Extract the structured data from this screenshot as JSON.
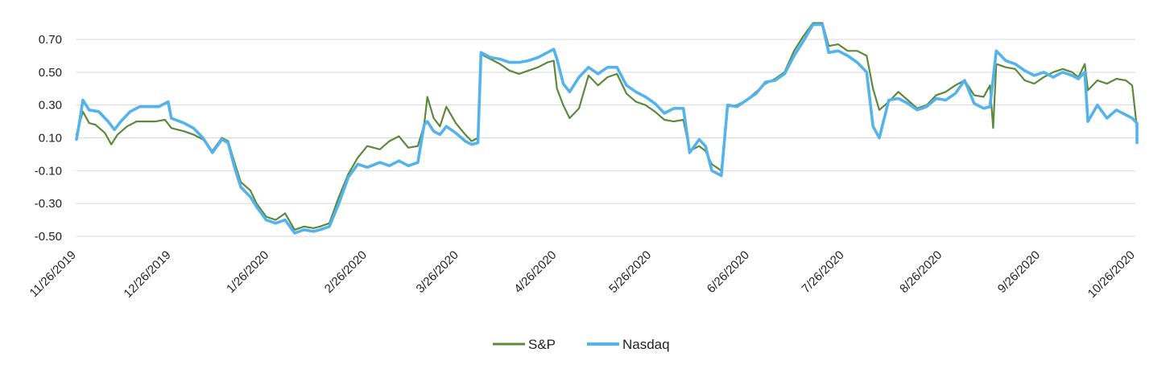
{
  "chart_data": {
    "type": "line",
    "title": "",
    "xlabel": "",
    "ylabel": "",
    "x_start": "2019-11-26",
    "x_end": "2020-10-26",
    "x_tick_labels": [
      "11/26/2019",
      "12/26/2019",
      "1/26/2020",
      "2/26/2020",
      "3/26/2020",
      "4/26/2020",
      "5/26/2020",
      "6/26/2020",
      "7/26/2020",
      "8/26/2020",
      "9/26/2020",
      "10/26/2020"
    ],
    "x_tick_dates": [
      "2019-11-26",
      "2019-12-26",
      "2020-01-26",
      "2020-02-26",
      "2020-03-26",
      "2020-04-26",
      "2020-05-26",
      "2020-06-26",
      "2020-07-26",
      "2020-08-26",
      "2020-09-26",
      "2020-10-26"
    ],
    "y_tick_labels": [
      "0.70",
      "0.50",
      "0.30",
      "0.10",
      "-0.10",
      "-0.30",
      "-0.50"
    ],
    "y_tick_values": [
      0.7,
      0.5,
      0.3,
      0.1,
      -0.1,
      -0.3,
      -0.5
    ],
    "ylim": [
      -0.5,
      0.8
    ],
    "grid": true,
    "legend_position": "bottom",
    "series": [
      {
        "name": "S&P",
        "color": "#5b8a3c",
        "points": [
          [
            "2019-11-26",
            0.12
          ],
          [
            "2019-11-28",
            0.26
          ],
          [
            "2019-11-30",
            0.19
          ],
          [
            "2019-12-02",
            0.18
          ],
          [
            "2019-12-05",
            0.13
          ],
          [
            "2019-12-07",
            0.06
          ],
          [
            "2019-12-09",
            0.12
          ],
          [
            "2019-12-12",
            0.17
          ],
          [
            "2019-12-15",
            0.2
          ],
          [
            "2019-12-18",
            0.2
          ],
          [
            "2019-12-21",
            0.2
          ],
          [
            "2019-12-24",
            0.21
          ],
          [
            "2019-12-26",
            0.16
          ],
          [
            "2019-12-30",
            0.14
          ],
          [
            "2020-01-02",
            0.12
          ],
          [
            "2020-01-05",
            0.09
          ],
          [
            "2020-01-08",
            0.02
          ],
          [
            "2020-01-11",
            0.1
          ],
          [
            "2020-01-13",
            0.08
          ],
          [
            "2020-01-15",
            -0.05
          ],
          [
            "2020-01-17",
            -0.17
          ],
          [
            "2020-01-20",
            -0.22
          ],
          [
            "2020-01-22",
            -0.3
          ],
          [
            "2020-01-25",
            -0.38
          ],
          [
            "2020-01-28",
            -0.4
          ],
          [
            "2020-01-31",
            -0.36
          ],
          [
            "2020-02-03",
            -0.46
          ],
          [
            "2020-02-06",
            -0.44
          ],
          [
            "2020-02-09",
            -0.45
          ],
          [
            "2020-02-11",
            -0.44
          ],
          [
            "2020-02-14",
            -0.42
          ],
          [
            "2020-02-17",
            -0.26
          ],
          [
            "2020-02-20",
            -0.12
          ],
          [
            "2020-02-23",
            -0.02
          ],
          [
            "2020-02-26",
            0.05
          ],
          [
            "2020-03-01",
            0.03
          ],
          [
            "2020-03-04",
            0.08
          ],
          [
            "2020-03-07",
            0.11
          ],
          [
            "2020-03-10",
            0.04
          ],
          [
            "2020-03-13",
            0.05
          ],
          [
            "2020-03-15",
            0.18
          ],
          [
            "2020-03-16",
            0.35
          ],
          [
            "2020-03-18",
            0.22
          ],
          [
            "2020-03-20",
            0.17
          ],
          [
            "2020-03-22",
            0.29
          ],
          [
            "2020-03-25",
            0.19
          ],
          [
            "2020-03-28",
            0.12
          ],
          [
            "2020-03-30",
            0.08
          ],
          [
            "2020-04-01",
            0.1
          ],
          [
            "2020-04-02",
            0.61
          ],
          [
            "2020-04-05",
            0.58
          ],
          [
            "2020-04-08",
            0.55
          ],
          [
            "2020-04-11",
            0.51
          ],
          [
            "2020-04-14",
            0.49
          ],
          [
            "2020-04-17",
            0.51
          ],
          [
            "2020-04-20",
            0.53
          ],
          [
            "2020-04-23",
            0.56
          ],
          [
            "2020-04-25",
            0.57
          ],
          [
            "2020-04-26",
            0.4
          ],
          [
            "2020-04-28",
            0.3
          ],
          [
            "2020-04-30",
            0.22
          ],
          [
            "2020-05-03",
            0.28
          ],
          [
            "2020-05-06",
            0.48
          ],
          [
            "2020-05-09",
            0.42
          ],
          [
            "2020-05-12",
            0.47
          ],
          [
            "2020-05-15",
            0.49
          ],
          [
            "2020-05-18",
            0.37
          ],
          [
            "2020-05-21",
            0.32
          ],
          [
            "2020-05-24",
            0.3
          ],
          [
            "2020-05-27",
            0.26
          ],
          [
            "2020-05-30",
            0.21
          ],
          [
            "2020-06-02",
            0.2
          ],
          [
            "2020-06-05",
            0.21
          ],
          [
            "2020-06-07",
            0.02
          ],
          [
            "2020-06-10",
            0.05
          ],
          [
            "2020-06-12",
            0.02
          ],
          [
            "2020-06-14",
            -0.06
          ],
          [
            "2020-06-17",
            -0.1
          ],
          [
            "2020-06-19",
            0.29
          ],
          [
            "2020-06-22",
            0.3
          ],
          [
            "2020-06-25",
            0.33
          ],
          [
            "2020-06-28",
            0.38
          ],
          [
            "2020-07-01",
            0.43
          ],
          [
            "2020-07-04",
            0.46
          ],
          [
            "2020-07-07",
            0.5
          ],
          [
            "2020-07-10",
            0.63
          ],
          [
            "2020-07-13",
            0.72
          ],
          [
            "2020-07-16",
            0.8
          ],
          [
            "2020-07-19",
            0.8
          ],
          [
            "2020-07-21",
            0.66
          ],
          [
            "2020-07-24",
            0.67
          ],
          [
            "2020-07-27",
            0.63
          ],
          [
            "2020-07-30",
            0.63
          ],
          [
            "2020-08-02",
            0.6
          ],
          [
            "2020-08-04",
            0.4
          ],
          [
            "2020-08-06",
            0.27
          ],
          [
            "2020-08-09",
            0.32
          ],
          [
            "2020-08-12",
            0.38
          ],
          [
            "2020-08-15",
            0.33
          ],
          [
            "2020-08-18",
            0.28
          ],
          [
            "2020-08-21",
            0.3
          ],
          [
            "2020-08-24",
            0.36
          ],
          [
            "2020-08-27",
            0.38
          ],
          [
            "2020-08-30",
            0.42
          ],
          [
            "2020-09-02",
            0.45
          ],
          [
            "2020-09-05",
            0.36
          ],
          [
            "2020-09-08",
            0.35
          ],
          [
            "2020-09-10",
            0.42
          ],
          [
            "2020-09-11",
            0.16
          ],
          [
            "2020-09-12",
            0.55
          ],
          [
            "2020-09-15",
            0.53
          ],
          [
            "2020-09-18",
            0.52
          ],
          [
            "2020-09-21",
            0.45
          ],
          [
            "2020-09-24",
            0.43
          ],
          [
            "2020-09-27",
            0.47
          ],
          [
            "2020-09-30",
            0.5
          ],
          [
            "2020-10-03",
            0.52
          ],
          [
            "2020-10-06",
            0.5
          ],
          [
            "2020-10-08",
            0.47
          ],
          [
            "2020-10-10",
            0.55
          ],
          [
            "2020-10-11",
            0.39
          ],
          [
            "2020-10-14",
            0.45
          ],
          [
            "2020-10-17",
            0.43
          ],
          [
            "2020-10-20",
            0.46
          ],
          [
            "2020-10-23",
            0.45
          ],
          [
            "2020-10-25",
            0.42
          ],
          [
            "2020-10-27",
            0.16
          ],
          [
            "2020-10-30",
            0.12
          ],
          [
            "2020-11-01",
            0.13
          ]
        ]
      },
      {
        "name": "Nasdaq",
        "color": "#54b3ea",
        "points": [
          [
            "2019-11-26",
            0.09
          ],
          [
            "2019-11-27",
            0.2
          ],
          [
            "2019-11-28",
            0.33
          ],
          [
            "2019-11-30",
            0.27
          ],
          [
            "2019-12-03",
            0.26
          ],
          [
            "2019-12-06",
            0.2
          ],
          [
            "2019-12-08",
            0.15
          ],
          [
            "2019-12-10",
            0.2
          ],
          [
            "2019-12-13",
            0.26
          ],
          [
            "2019-12-16",
            0.29
          ],
          [
            "2019-12-19",
            0.29
          ],
          [
            "2019-12-22",
            0.29
          ],
          [
            "2019-12-25",
            0.32
          ],
          [
            "2019-12-26",
            0.22
          ],
          [
            "2019-12-30",
            0.19
          ],
          [
            "2020-01-02",
            0.16
          ],
          [
            "2020-01-05",
            0.1
          ],
          [
            "2020-01-08",
            0.01
          ],
          [
            "2020-01-11",
            0.09
          ],
          [
            "2020-01-13",
            0.07
          ],
          [
            "2020-01-15",
            -0.08
          ],
          [
            "2020-01-17",
            -0.2
          ],
          [
            "2020-01-20",
            -0.26
          ],
          [
            "2020-01-22",
            -0.32
          ],
          [
            "2020-01-25",
            -0.4
          ],
          [
            "2020-01-28",
            -0.42
          ],
          [
            "2020-01-31",
            -0.4
          ],
          [
            "2020-02-03",
            -0.48
          ],
          [
            "2020-02-06",
            -0.46
          ],
          [
            "2020-02-09",
            -0.47
          ],
          [
            "2020-02-11",
            -0.46
          ],
          [
            "2020-02-14",
            -0.44
          ],
          [
            "2020-02-17",
            -0.3
          ],
          [
            "2020-02-20",
            -0.14
          ],
          [
            "2020-02-23",
            -0.06
          ],
          [
            "2020-02-26",
            -0.08
          ],
          [
            "2020-03-01",
            -0.05
          ],
          [
            "2020-03-04",
            -0.07
          ],
          [
            "2020-03-07",
            -0.04
          ],
          [
            "2020-03-10",
            -0.07
          ],
          [
            "2020-03-13",
            -0.05
          ],
          [
            "2020-03-15",
            0.18
          ],
          [
            "2020-03-16",
            0.2
          ],
          [
            "2020-03-18",
            0.14
          ],
          [
            "2020-03-20",
            0.12
          ],
          [
            "2020-03-22",
            0.17
          ],
          [
            "2020-03-25",
            0.13
          ],
          [
            "2020-03-28",
            0.08
          ],
          [
            "2020-03-30",
            0.06
          ],
          [
            "2020-04-01",
            0.07
          ],
          [
            "2020-04-02",
            0.62
          ],
          [
            "2020-04-05",
            0.59
          ],
          [
            "2020-04-08",
            0.58
          ],
          [
            "2020-04-11",
            0.56
          ],
          [
            "2020-04-14",
            0.56
          ],
          [
            "2020-04-17",
            0.57
          ],
          [
            "2020-04-20",
            0.59
          ],
          [
            "2020-04-23",
            0.62
          ],
          [
            "2020-04-25",
            0.64
          ],
          [
            "2020-04-26",
            0.58
          ],
          [
            "2020-04-28",
            0.43
          ],
          [
            "2020-04-30",
            0.38
          ],
          [
            "2020-05-03",
            0.47
          ],
          [
            "2020-05-06",
            0.53
          ],
          [
            "2020-05-09",
            0.49
          ],
          [
            "2020-05-12",
            0.53
          ],
          [
            "2020-05-15",
            0.53
          ],
          [
            "2020-05-18",
            0.42
          ],
          [
            "2020-05-21",
            0.38
          ],
          [
            "2020-05-24",
            0.35
          ],
          [
            "2020-05-27",
            0.31
          ],
          [
            "2020-05-30",
            0.25
          ],
          [
            "2020-06-02",
            0.28
          ],
          [
            "2020-06-05",
            0.28
          ],
          [
            "2020-06-07",
            0.01
          ],
          [
            "2020-06-10",
            0.09
          ],
          [
            "2020-06-12",
            0.05
          ],
          [
            "2020-06-14",
            -0.1
          ],
          [
            "2020-06-17",
            -0.13
          ],
          [
            "2020-06-19",
            0.3
          ],
          [
            "2020-06-22",
            0.29
          ],
          [
            "2020-06-25",
            0.33
          ],
          [
            "2020-06-28",
            0.37
          ],
          [
            "2020-07-01",
            0.44
          ],
          [
            "2020-07-04",
            0.45
          ],
          [
            "2020-07-07",
            0.49
          ],
          [
            "2020-07-10",
            0.6
          ],
          [
            "2020-07-13",
            0.69
          ],
          [
            "2020-07-16",
            0.79
          ],
          [
            "2020-07-19",
            0.79
          ],
          [
            "2020-07-21",
            0.62
          ],
          [
            "2020-07-24",
            0.63
          ],
          [
            "2020-07-27",
            0.6
          ],
          [
            "2020-07-30",
            0.56
          ],
          [
            "2020-08-02",
            0.5
          ],
          [
            "2020-08-04",
            0.17
          ],
          [
            "2020-08-06",
            0.1
          ],
          [
            "2020-08-09",
            0.33
          ],
          [
            "2020-08-12",
            0.34
          ],
          [
            "2020-08-15",
            0.31
          ],
          [
            "2020-08-18",
            0.27
          ],
          [
            "2020-08-21",
            0.29
          ],
          [
            "2020-08-24",
            0.34
          ],
          [
            "2020-08-27",
            0.33
          ],
          [
            "2020-08-30",
            0.37
          ],
          [
            "2020-09-02",
            0.45
          ],
          [
            "2020-09-05",
            0.31
          ],
          [
            "2020-09-08",
            0.28
          ],
          [
            "2020-09-10",
            0.29
          ],
          [
            "2020-09-12",
            0.63
          ],
          [
            "2020-09-15",
            0.57
          ],
          [
            "2020-09-18",
            0.55
          ],
          [
            "2020-09-21",
            0.51
          ],
          [
            "2020-09-24",
            0.48
          ],
          [
            "2020-09-27",
            0.5
          ],
          [
            "2020-09-30",
            0.47
          ],
          [
            "2020-10-03",
            0.5
          ],
          [
            "2020-10-06",
            0.48
          ],
          [
            "2020-10-08",
            0.46
          ],
          [
            "2020-10-10",
            0.5
          ],
          [
            "2020-10-11",
            0.2
          ],
          [
            "2020-10-14",
            0.3
          ],
          [
            "2020-10-17",
            0.22
          ],
          [
            "2020-10-20",
            0.27
          ],
          [
            "2020-10-23",
            0.24
          ],
          [
            "2020-10-25",
            0.22
          ],
          [
            "2020-10-27",
            0.19
          ],
          [
            "2020-10-30",
            0.07
          ],
          [
            "2020-11-01",
            0.12
          ]
        ]
      }
    ]
  }
}
